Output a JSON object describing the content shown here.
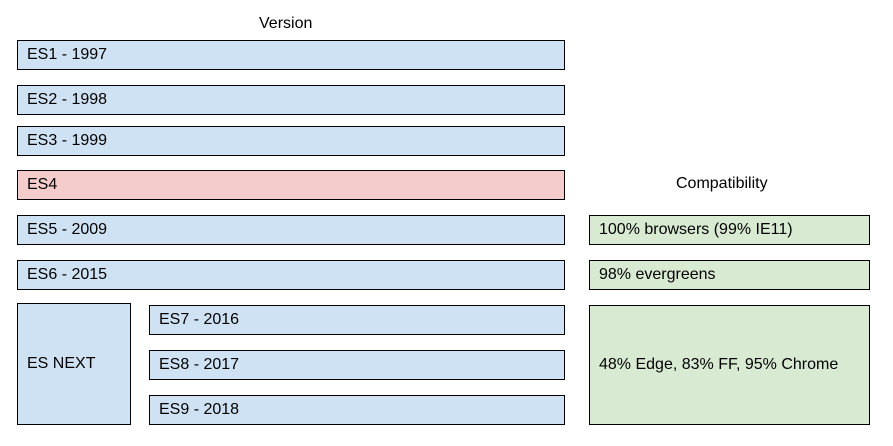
{
  "headers": {
    "version": "Version",
    "compatibility": "Compatibility"
  },
  "versions": {
    "es1": "ES1 - 1997",
    "es2": "ES2 - 1998",
    "es3": "ES3 - 1999",
    "es4": "ES4",
    "es5": "ES5 - 2009",
    "es6": "ES6 - 2015",
    "es_next": "ES NEXT",
    "es7": "ES7 - 2016",
    "es8": "ES8 - 2017",
    "es9": "ES9 - 2018"
  },
  "compatibility": {
    "es5": "100% browsers (99% IE11)",
    "es6": "98% evergreens",
    "es_next": "48% Edge, 83% FF, 95% Chrome"
  },
  "colors": {
    "released": "#cfe2f3",
    "abandoned": "#f4cccc",
    "compatibility": "#d9ead3",
    "border": "#000000"
  }
}
